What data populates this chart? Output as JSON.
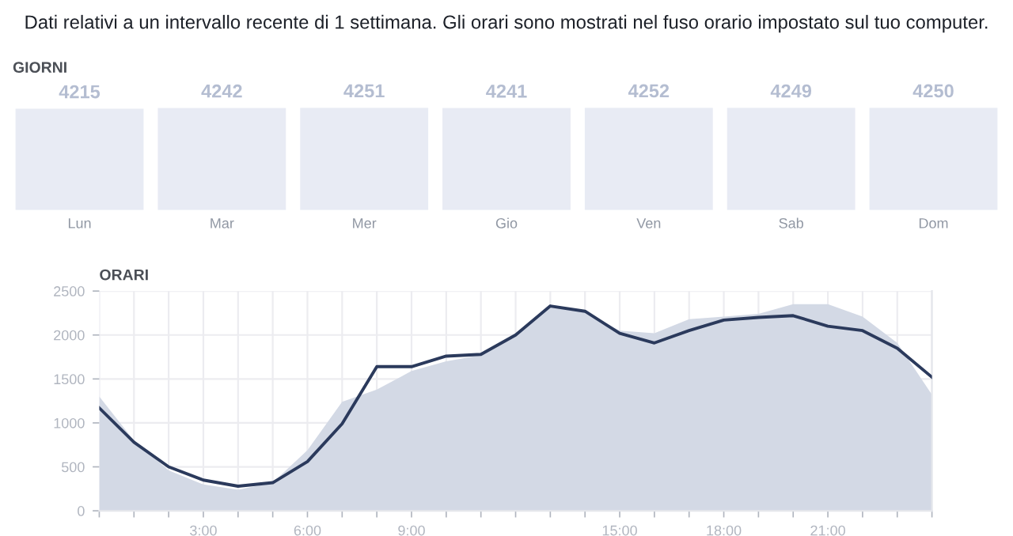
{
  "chart_data": [
    {
      "type": "bar",
      "title": "GIORNI",
      "annotations": [
        "Dati relativi a un intervallo recente di 1 settimana. Gli orari sono mostrati nel fuso orario impostato sul tuo computer."
      ],
      "categories": [
        "Lun",
        "Mar",
        "Mer",
        "Gio",
        "Ven",
        "Sab",
        "Dom"
      ],
      "values": [
        4215,
        4242,
        4251,
        4241,
        4252,
        4249,
        4250
      ],
      "color": "#e8ebf4",
      "data_labels": true
    },
    {
      "type": "area",
      "title": "ORARI",
      "x": [
        0,
        1,
        2,
        3,
        4,
        5,
        6,
        7,
        8,
        9,
        10,
        11,
        12,
        13,
        14,
        15,
        16,
        17,
        18,
        19,
        20,
        21,
        22,
        23,
        24
      ],
      "xlim": [
        0,
        24
      ],
      "xticks": [
        {
          "value": 0,
          "label": null
        },
        {
          "value": 1,
          "label": null
        },
        {
          "value": 2,
          "label": null
        },
        {
          "value": 3,
          "label": "3:00"
        },
        {
          "value": 4,
          "label": null
        },
        {
          "value": 5,
          "label": null
        },
        {
          "value": 6,
          "label": "6:00"
        },
        {
          "value": 7,
          "label": null
        },
        {
          "value": 8,
          "label": null
        },
        {
          "value": 9,
          "label": "9:00"
        },
        {
          "value": 10,
          "label": null
        },
        {
          "value": 11,
          "label": null
        },
        {
          "value": 12,
          "label": null
        },
        {
          "value": 13,
          "label": null
        },
        {
          "value": 14,
          "label": null
        },
        {
          "value": 15,
          "label": "15:00"
        },
        {
          "value": 16,
          "label": null
        },
        {
          "value": 17,
          "label": null
        },
        {
          "value": 18,
          "label": "18:00"
        },
        {
          "value": 19,
          "label": null
        },
        {
          "value": 20,
          "label": null
        },
        {
          "value": 21,
          "label": "21:00"
        },
        {
          "value": 22,
          "label": null
        },
        {
          "value": 23,
          "label": null
        },
        {
          "value": 24,
          "label": null
        }
      ],
      "ylim": [
        0,
        2500
      ],
      "yticks": [
        0,
        500,
        1000,
        1500,
        2000,
        2500
      ],
      "grid": true,
      "series": [
        {
          "type": "area",
          "color": "#d3d9e5",
          "values": [
            1300,
            800,
            460,
            300,
            240,
            320,
            690,
            1240,
            1380,
            1590,
            1700,
            1770,
            2000,
            2320,
            2260,
            2050,
            2020,
            2180,
            2210,
            2240,
            2350,
            2350,
            2210,
            1910,
            1320
          ]
        },
        {
          "type": "line",
          "color": "#2b3a5c",
          "values": [
            1170,
            780,
            500,
            350,
            280,
            320,
            560,
            990,
            1640,
            1640,
            1760,
            1780,
            2000,
            2330,
            2270,
            2020,
            1910,
            2050,
            2170,
            2200,
            2220,
            2100,
            2050,
            1850,
            1520
          ]
        }
      ]
    }
  ]
}
